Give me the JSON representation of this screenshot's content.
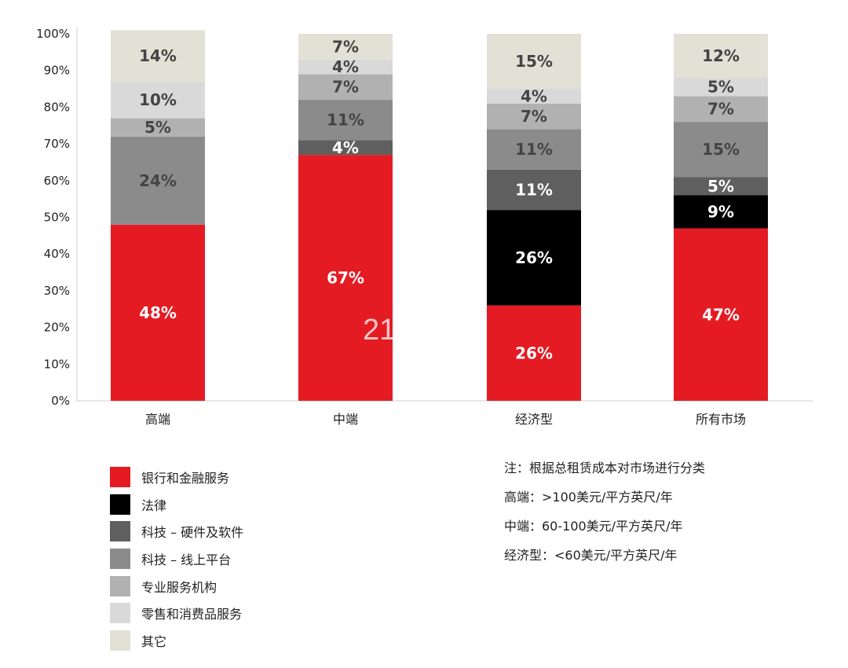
{
  "chart_data": {
    "type": "bar",
    "stacked": true,
    "categories": [
      "高端",
      "中端",
      "经济型",
      "所有市场"
    ],
    "y_ticks": [
      "0%",
      "10%",
      "20%",
      "30%",
      "40%",
      "50%",
      "60%",
      "70%",
      "80%",
      "90%",
      "100%"
    ],
    "ylim": [
      0,
      100
    ],
    "grid": false,
    "legend_position": "bottom-left",
    "series": [
      {
        "name": "银行和金融服务",
        "color": "#e41b23",
        "values": [
          48,
          67,
          26,
          47
        ],
        "labels": [
          "48%",
          "67%",
          "26%",
          "47%"
        ]
      },
      {
        "name": "法律",
        "color": "#000000",
        "values": [
          0,
          0,
          26,
          9
        ],
        "labels": [
          "",
          "",
          "26%",
          "9%"
        ]
      },
      {
        "name": "科技 – 硬件及软件",
        "color": "#5f5f5f",
        "values": [
          0,
          4,
          11,
          5
        ],
        "labels": [
          "",
          "4%",
          "11%",
          "5%"
        ]
      },
      {
        "name": "科技 – 线上平台",
        "color": "#8b8b8b",
        "values": [
          24,
          11,
          11,
          15
        ],
        "labels": [
          "24%",
          "11%",
          "11%",
          "15%"
        ]
      },
      {
        "name": "专业服务机构",
        "color": "#b1b1b1",
        "values": [
          5,
          7,
          7,
          7
        ],
        "labels": [
          "5%",
          "7%",
          "7%",
          "7%"
        ]
      },
      {
        "name": "零售和消费品服务",
        "color": "#d9d9d9",
        "values": [
          10,
          4,
          4,
          5
        ],
        "labels": [
          "10%",
          "4%",
          "4%",
          "5%"
        ]
      },
      {
        "name": "其它",
        "color": "#e3e1d5",
        "values": [
          14,
          7,
          15,
          12
        ],
        "labels": [
          "14%",
          "7%",
          "15%",
          "12%"
        ]
      }
    ]
  },
  "notes": [
    "注：根据总租赁成本对市场进行分类",
    "高端：>100美元/平方英尺/年",
    "中端：60-100美元/平方英尺/年",
    "经济型：<60美元/平方英尺/年"
  ],
  "watermark": "21"
}
